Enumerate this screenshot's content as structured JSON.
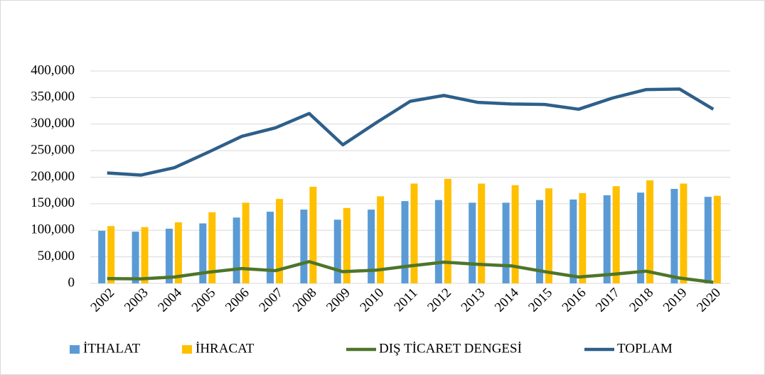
{
  "chart_data": {
    "type": "bar",
    "categories": [
      "2002",
      "2003",
      "2004",
      "2005",
      "2006",
      "2007",
      "2008",
      "2009",
      "2010",
      "2011",
      "2012",
      "2013",
      "2014",
      "2015",
      "2016",
      "2017",
      "2018",
      "2019",
      "2020"
    ],
    "series": [
      {
        "name": "İTHALAT",
        "type": "bar",
        "color": "#5b9bd5",
        "values": [
          99000,
          97500,
          103000,
          113000,
          124000,
          135000,
          139000,
          120000,
          139000,
          155000,
          157000,
          152000,
          152000,
          157000,
          158000,
          166000,
          171000,
          178000,
          163000
        ]
      },
      {
        "name": "İHRACAT",
        "type": "bar",
        "color": "#ffc000",
        "values": [
          108000,
          106000,
          115000,
          134000,
          152000,
          159000,
          182000,
          142000,
          164000,
          188000,
          197000,
          188000,
          185000,
          179000,
          170000,
          183000,
          194000,
          188000,
          165000
        ]
      },
      {
        "name": "DIŞ TİCARET DENGESİ",
        "type": "line",
        "color": "#4e7529",
        "values": [
          9000,
          8500,
          12000,
          21000,
          28000,
          24000,
          41000,
          22000,
          25000,
          33000,
          40000,
          36000,
          33000,
          22000,
          12000,
          17000,
          23000,
          10000,
          2000
        ]
      },
      {
        "name": "TOPLAM",
        "type": "line",
        "color": "#2e5f8a",
        "values": [
          208000,
          204000,
          218000,
          247000,
          277000,
          293000,
          320000,
          261000,
          303000,
          343000,
          354000,
          341000,
          338000,
          337000,
          328000,
          349000,
          365000,
          366000,
          328000
        ]
      }
    ],
    "ylim": [
      0,
      400000
    ],
    "yticks": [
      0,
      {
        "value": 50000,
        "label": "50,000"
      },
      {
        "value": 100000,
        "label": "100,000"
      },
      {
        "value": 150000,
        "label": "150,000"
      },
      {
        "value": 200000,
        "label": "200,000"
      },
      {
        "value": 250000,
        "label": "250,000"
      },
      {
        "value": 300000,
        "label": "300,000"
      },
      {
        "value": 350000,
        "label": "350,000"
      },
      {
        "value": 400000,
        "label": "400,000"
      }
    ],
    "grid": true,
    "legend": "bottom"
  }
}
